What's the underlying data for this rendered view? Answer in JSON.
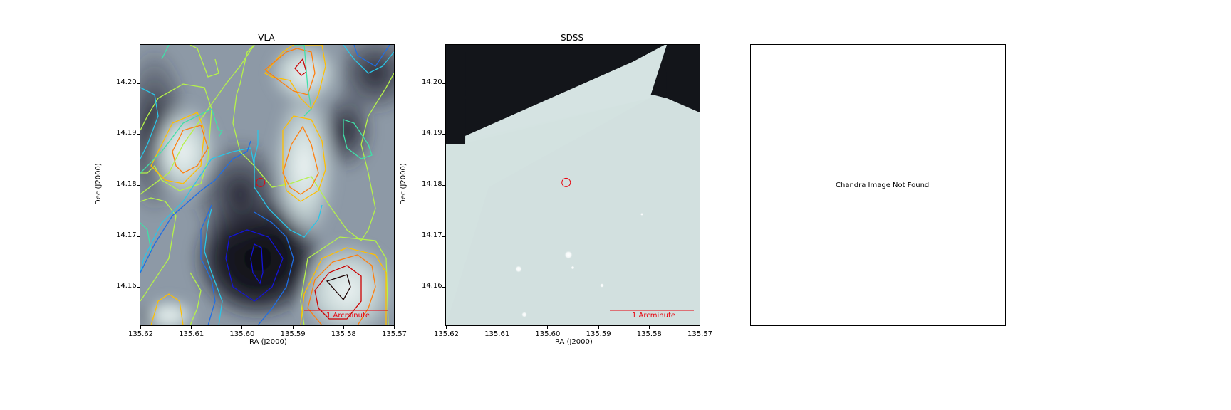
{
  "colors": {
    "contour_levels": [
      "#1a0000",
      "#cc0000",
      "#ff7f0e",
      "#ffbf00",
      "#b5f24a",
      "#40e0a8",
      "#29c6e8",
      "#1e6ee6",
      "#1414d8"
    ],
    "marker": "#e8000b",
    "scalebar": "#e8000b",
    "sdss_dark": "#13151a",
    "sdss_light": "#d2e0df"
  },
  "chart_data": [
    {
      "type": "image",
      "title": "VLA",
      "xlabel": "RA (J2000)",
      "ylabel": "Dec (J2000)",
      "xlim": [
        135.62,
        135.57
      ],
      "ylim": [
        14.1525,
        14.2075
      ],
      "xticks": [
        135.62,
        135.61,
        135.6,
        135.59,
        135.58,
        135.57
      ],
      "xtick_labels": [
        "135.62",
        "135.61",
        "135.60",
        "135.59",
        "135.58",
        "135.57"
      ],
      "yticks": [
        14.16,
        14.17,
        14.18,
        14.19,
        14.2
      ],
      "ytick_labels": [
        "14.16",
        "14.17",
        "14.18",
        "14.19",
        "14.20"
      ],
      "colormap": "bone",
      "contours": "on",
      "marker": {
        "ra": 135.5963,
        "dec": 14.1805,
        "shape": "circle"
      },
      "scalebar_label": "1 Arcminute"
    },
    {
      "type": "image",
      "title": "SDSS",
      "xlabel": "RA (J2000)",
      "ylabel": "Dec (J2000)",
      "xlim": [
        135.62,
        135.57
      ],
      "ylim": [
        14.1525,
        14.2075
      ],
      "xticks": [
        135.62,
        135.61,
        135.6,
        135.59,
        135.58,
        135.57
      ],
      "xtick_labels": [
        "135.62",
        "135.61",
        "135.60",
        "135.59",
        "135.58",
        "135.57"
      ],
      "yticks": [
        14.16,
        14.17,
        14.18,
        14.19,
        14.2
      ],
      "ytick_labels": [
        "14.16",
        "14.17",
        "14.18",
        "14.19",
        "14.20"
      ],
      "colormap": "bone",
      "marker": {
        "ra": 135.5963,
        "dec": 14.1805,
        "shape": "circle"
      },
      "scalebar_label": "1 Arcminute"
    },
    {
      "type": "image",
      "title": "",
      "message": "Chandra Image Not Found"
    }
  ]
}
